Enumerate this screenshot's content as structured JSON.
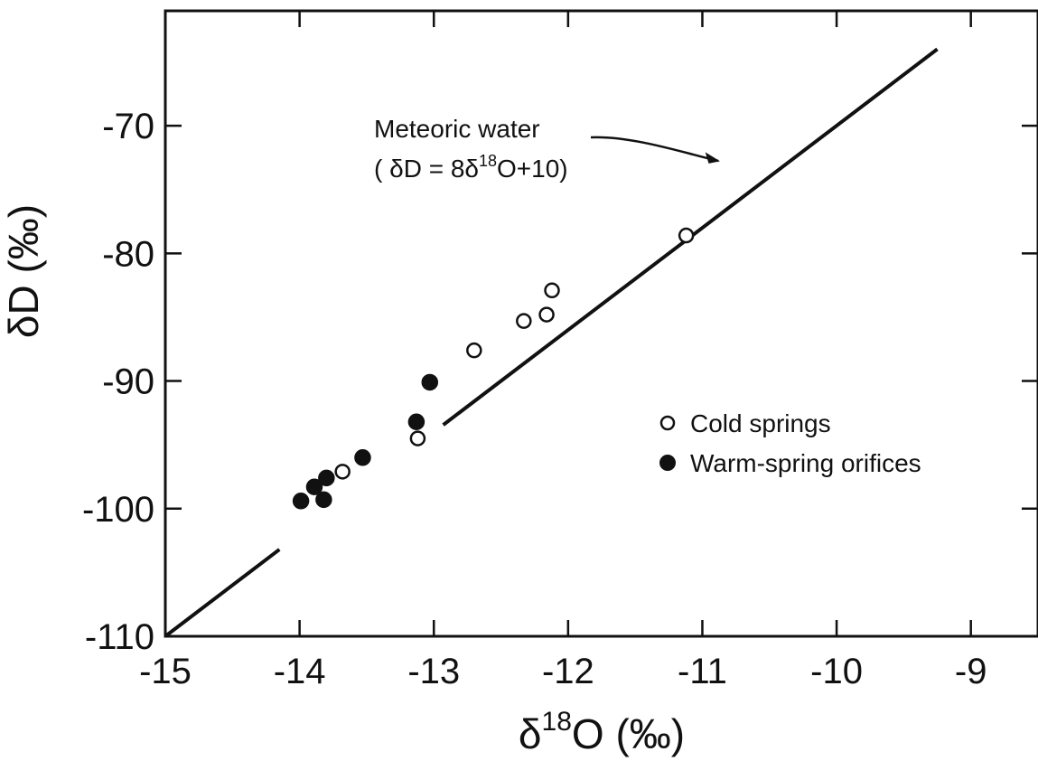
{
  "chart_data": {
    "type": "scatter",
    "title": "",
    "xlabel": "δ18O (‰)",
    "xlabel_parts": {
      "main": "δ",
      "sup": "18",
      "rest": "O (‰)"
    },
    "ylabel": "δD (‰)",
    "xlim": [
      -15,
      -8.5
    ],
    "ylim": [
      -110,
      -61
    ],
    "x_ticks": [
      -15,
      -14,
      -13,
      -12,
      -11,
      -10,
      -9
    ],
    "x_tick_labels": [
      "-15",
      "-14",
      "-13",
      "-12",
      "-11",
      "-10",
      "-9"
    ],
    "y_ticks": [
      -110,
      -100,
      -90,
      -80,
      -70
    ],
    "y_tick_labels": [
      "-110",
      "-100",
      "-90",
      "-80",
      "-70"
    ],
    "grid": false,
    "legend_position": "right",
    "series": [
      {
        "name": "Cold springs",
        "marker": "open-circle",
        "points": [
          {
            "x": -11.12,
            "y": -78.6
          },
          {
            "x": -12.12,
            "y": -82.9
          },
          {
            "x": -12.16,
            "y": -84.8
          },
          {
            "x": -12.33,
            "y": -85.3
          },
          {
            "x": -12.7,
            "y": -87.6
          },
          {
            "x": -13.12,
            "y": -94.5
          },
          {
            "x": -13.68,
            "y": -97.1
          }
        ]
      },
      {
        "name": "Warm-spring orifices",
        "marker": "filled-circle",
        "points": [
          {
            "x": -13.03,
            "y": -90.1
          },
          {
            "x": -13.13,
            "y": -93.2
          },
          {
            "x": -13.53,
            "y": -96.0
          },
          {
            "x": -13.8,
            "y": -97.6
          },
          {
            "x": -13.89,
            "y": -98.3
          },
          {
            "x": -13.82,
            "y": -99.3
          },
          {
            "x": -13.99,
            "y": -99.4
          }
        ]
      }
    ],
    "reference_line": {
      "name": "Meteoric water",
      "equation": "(δD = 8δ18O+10)",
      "equation_parts": {
        "pre": "( δD = 8δ",
        "sup": "18",
        "post": "O+10)"
      },
      "slope": 8,
      "intercept": 10,
      "segments": [
        {
          "x0": -15,
          "x1": -14.15
        },
        {
          "x0": -12.93,
          "x1": -9.25
        }
      ]
    },
    "annotation": {
      "text": "Meteoric water",
      "equation_text": "( δD = 8δ18O+10)"
    }
  }
}
